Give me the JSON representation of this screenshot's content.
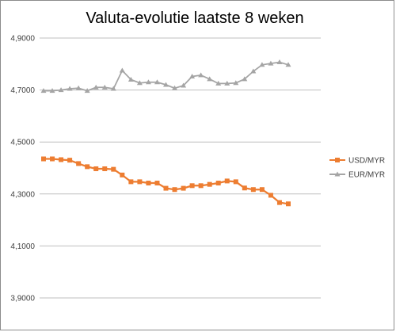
{
  "chart_data": {
    "type": "line",
    "title": "Valuta-evolutie laatste 8 weken",
    "xlabel": "",
    "ylabel": "",
    "ylim": [
      3.9,
      4.9
    ],
    "yticks": [
      "3,9000",
      "4,1000",
      "4,3000",
      "4,5000",
      "4,7000",
      "4,9000"
    ],
    "ytick_values": [
      3.9,
      4.1,
      4.3,
      4.5,
      4.7,
      4.9
    ],
    "grid": true,
    "legend_position": "right",
    "series": [
      {
        "name": "USD/MYR",
        "color": "#ed7d31",
        "marker": "square",
        "values": [
          4.435,
          4.435,
          4.432,
          4.43,
          4.417,
          4.405,
          4.397,
          4.397,
          4.395,
          4.373,
          4.347,
          4.347,
          4.342,
          4.342,
          4.322,
          4.317,
          4.322,
          4.332,
          4.332,
          4.337,
          4.342,
          4.35,
          4.347,
          4.323,
          4.317,
          4.317,
          4.295,
          4.267,
          4.262
        ]
      },
      {
        "name": "EUR/MYR",
        "color": "#a5a5a5",
        "marker": "triangle",
        "values": [
          4.697,
          4.697,
          4.7,
          4.705,
          4.707,
          4.697,
          4.71,
          4.71,
          4.705,
          4.775,
          4.74,
          4.727,
          4.73,
          4.73,
          4.72,
          4.707,
          4.717,
          4.752,
          4.757,
          4.742,
          4.725,
          4.725,
          4.727,
          4.742,
          4.772,
          4.797,
          4.802,
          4.807,
          4.797
        ]
      }
    ]
  }
}
